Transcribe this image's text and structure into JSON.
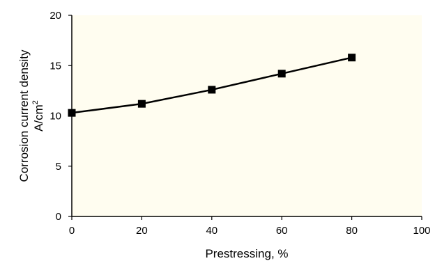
{
  "chart_data": {
    "type": "line",
    "title": "",
    "xlabel": "Prestressing, %",
    "ylabel_line1": "Corrosion current density",
    "ylabel_line2_base": "A/cm",
    "ylabel_line2_sup": "2",
    "xlim": [
      0,
      100
    ],
    "ylim": [
      0,
      20
    ],
    "x_ticks": [
      0,
      20,
      40,
      60,
      80,
      100
    ],
    "y_ticks": [
      0,
      5,
      10,
      15,
      20
    ],
    "grid": false,
    "legend": "none",
    "series": [
      {
        "x": [
          0,
          20,
          40,
          60,
          80
        ],
        "values": [
          10.3,
          11.2,
          12.6,
          14.2,
          15.8
        ],
        "marker": "square",
        "color": "#000000"
      }
    ],
    "plot_background": "#fffdf0"
  }
}
